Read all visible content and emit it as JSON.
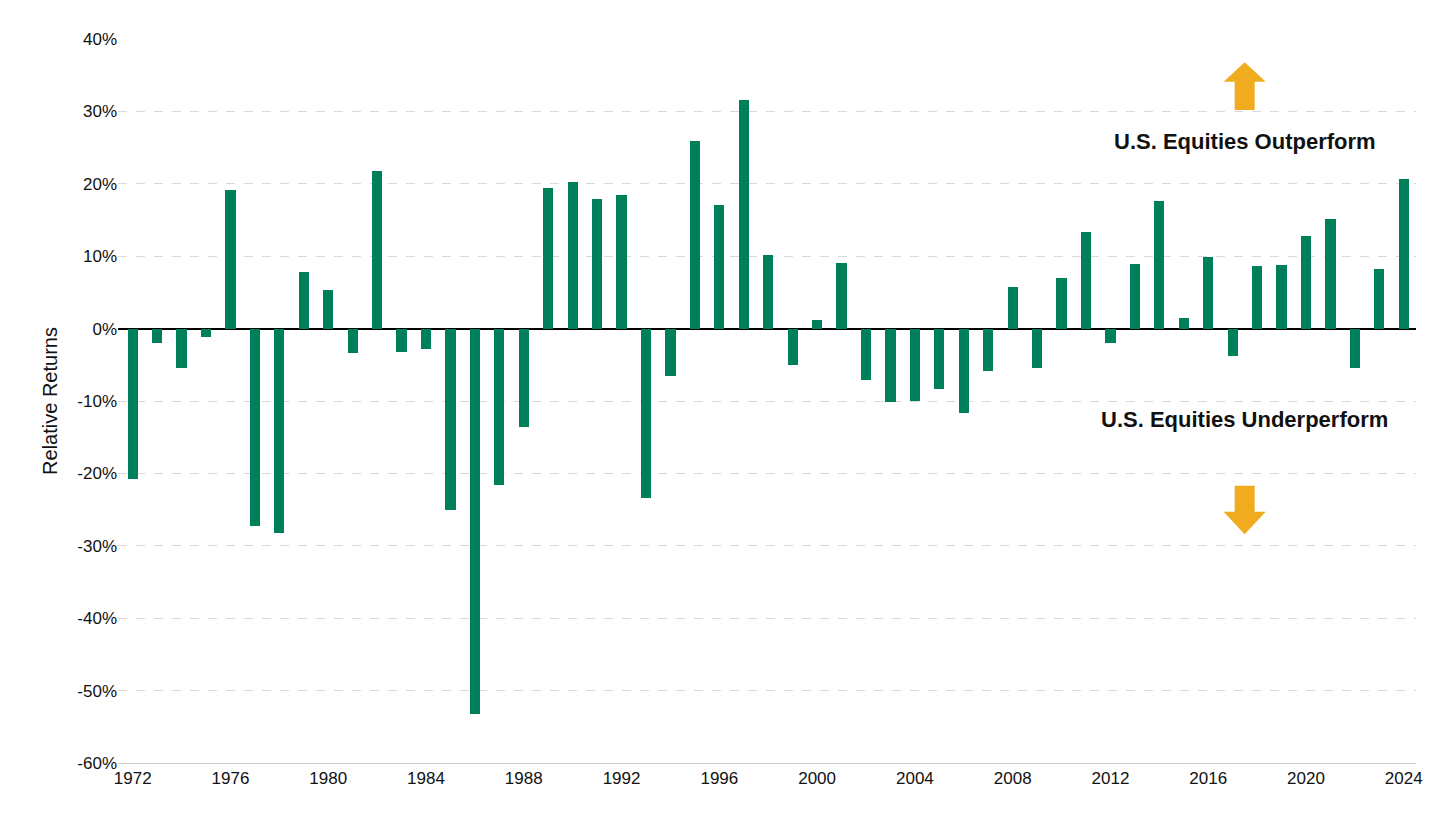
{
  "chart_data": {
    "type": "bar",
    "y_label": "Relative Returns",
    "annotations": [
      "U.S. Equities Outperform",
      "U.S. Equities Underperform"
    ],
    "x": [
      1972,
      1973,
      1974,
      1975,
      1976,
      1977,
      1978,
      1979,
      1980,
      1981,
      1982,
      1983,
      1984,
      1985,
      1986,
      1987,
      1988,
      1989,
      1990,
      1991,
      1992,
      1993,
      1994,
      1995,
      1996,
      1997,
      1998,
      1999,
      2000,
      2001,
      2002,
      2003,
      2004,
      2005,
      2006,
      2007,
      2008,
      2009,
      2010,
      2011,
      2012,
      2013,
      2014,
      2015,
      2016,
      2017,
      2018,
      2019,
      2020,
      2021,
      2022,
      2023,
      2024
    ],
    "values": [
      -20.8,
      -2.0,
      -5.5,
      -1.2,
      19.2,
      -27.3,
      -28.3,
      7.8,
      5.3,
      -3.4,
      21.8,
      -3.3,
      -2.8,
      -25.1,
      -53.2,
      -21.6,
      -13.6,
      19.4,
      20.3,
      17.9,
      18.5,
      -23.4,
      -6.6,
      25.9,
      17.1,
      31.6,
      10.1,
      -5.0,
      1.2,
      9.0,
      -7.1,
      -10.1,
      -10.0,
      -8.4,
      -11.6,
      -5.8,
      5.7,
      -5.5,
      7.0,
      13.4,
      -2.0,
      8.9,
      17.6,
      1.4,
      9.9,
      -3.8,
      8.7,
      8.8,
      12.8,
      15.1,
      -5.4,
      8.2,
      20.6
    ],
    "color": "#00805a",
    "xlim": [
      1971.4,
      2024.5
    ],
    "xticks": [
      1972,
      1976,
      1980,
      1984,
      1988,
      1992,
      1996,
      2000,
      2004,
      2008,
      2012,
      2016,
      2020,
      2024
    ],
    "ylim": [
      -60,
      40
    ],
    "yticks": [
      {
        "value": -60,
        "label": "-60%"
      },
      {
        "value": -50,
        "label": "-50%"
      },
      {
        "value": -40,
        "label": "-40%"
      },
      {
        "value": -30,
        "label": "-30%"
      },
      {
        "value": -20,
        "label": "-20%"
      },
      {
        "value": -10,
        "label": "-10%"
      },
      {
        "value": 0,
        "label": "0%"
      },
      {
        "value": 10,
        "label": "10%"
      },
      {
        "value": 20,
        "label": "20%"
      },
      {
        "value": 30,
        "label": "30%"
      },
      {
        "value": 40,
        "label": "40%"
      }
    ],
    "grid": true
  }
}
